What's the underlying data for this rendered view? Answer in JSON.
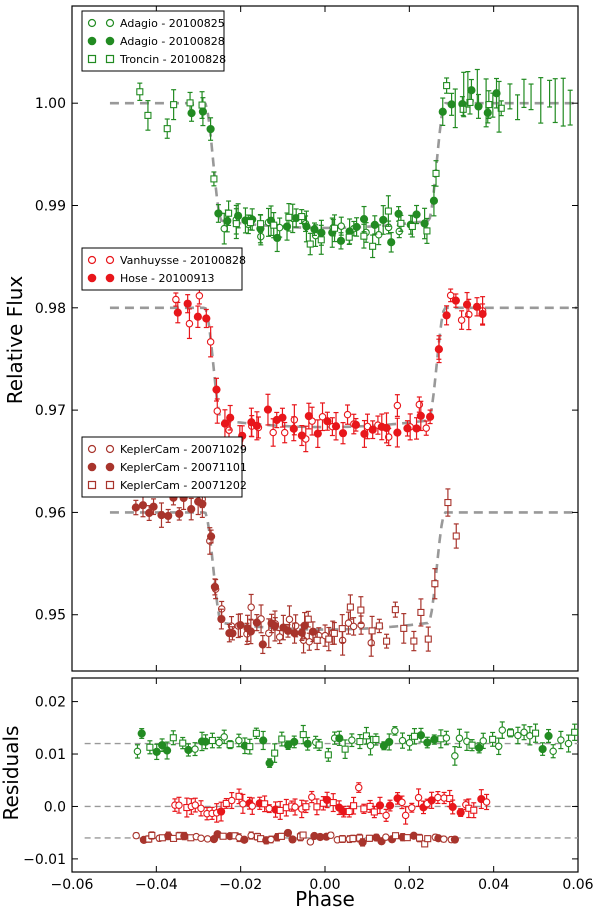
{
  "chart_data": [
    {
      "type": "scatter",
      "panel": "top",
      "ylabel": "Relative Flux",
      "xlim": [
        -0.06,
        0.06
      ],
      "ylim": [
        0.9445,
        1.0095
      ],
      "yticks": [
        0.95,
        0.96,
        0.97,
        0.98,
        0.99,
        1.0
      ],
      "yticklabels": [
        "0.95",
        "0.96",
        "0.97",
        "0.98",
        "0.99",
        "1.00"
      ],
      "legend_groups": [
        {
          "entries": [
            {
              "label": "Adagio - 20100825",
              "color": "#228B22",
              "marker": "open-circle"
            },
            {
              "label": "Adagio - 20100828",
              "color": "#228B22",
              "marker": "filled-circle"
            },
            {
              "label": "Troncin - 20100828",
              "color": "#228B22",
              "marker": "open-square"
            }
          ]
        },
        {
          "entries": [
            {
              "label": "Vanhuysse - 20100828",
              "color": "#e8161b",
              "marker": "open-circle"
            },
            {
              "label": "Hose - 20100913",
              "color": "#e8161b",
              "marker": "filled-circle"
            }
          ]
        },
        {
          "entries": [
            {
              "label": "KeplerCam - 20071029",
              "color": "#a8342c",
              "marker": "open-circle"
            },
            {
              "label": "KeplerCam - 20071101",
              "color": "#a8342c",
              "marker": "filled-circle"
            },
            {
              "label": "KeplerCam - 20071202",
              "color": "#a8342c",
              "marker": "open-square"
            }
          ]
        }
      ],
      "models": [
        {
          "name": "green model",
          "baseline": 1.0,
          "depth": 0.0115,
          "t1": 0.0285,
          "t2": 0.0245
        },
        {
          "name": "red model",
          "baseline": 0.98,
          "depth": 0.011,
          "t1": 0.0285,
          "t2": 0.0245
        },
        {
          "name": "brown model",
          "baseline": 0.96,
          "depth": 0.0108,
          "t1": 0.0285,
          "t2": 0.0245
        }
      ],
      "series": [
        {
          "name": "Adagio - 20100825",
          "color": "#228B22",
          "marker": "open-circle",
          "x_range": [
            -0.025,
            0.02
          ],
          "offset": 0.0,
          "n": 16
        },
        {
          "name": "Adagio - 20100828",
          "color": "#228B22",
          "marker": "filled-circle",
          "x_range": [
            -0.032,
            0.042
          ],
          "offset": 0.0,
          "n": 36
        },
        {
          "name": "Troncin - 20100828",
          "color": "#228B22",
          "marker": "open-square",
          "x_range": [
            -0.045,
            0.043
          ],
          "offset": 0.0,
          "n": 30
        },
        {
          "name": "Green uncertain (tail)",
          "color": "#228B22",
          "marker": "none",
          "x_range": [
            0.03,
            0.06
          ],
          "offset": 0.0,
          "n": 16
        },
        {
          "name": "Vanhuysse - 20100828",
          "color": "#e8161b",
          "marker": "open-circle",
          "x_range": [
            -0.036,
            0.039
          ],
          "offset": -0.02,
          "n": 30
        },
        {
          "name": "Hose - 20100913",
          "color": "#e8161b",
          "marker": "filled-circle",
          "x_range": [
            -0.035,
            0.039
          ],
          "offset": -0.02,
          "n": 36
        },
        {
          "name": "KeplerCam - 20071029",
          "color": "#a8342c",
          "marker": "open-circle",
          "x_range": [
            -0.03,
            0.012
          ],
          "offset": -0.04,
          "n": 24
        },
        {
          "name": "KeplerCam - 20071101",
          "color": "#a8342c",
          "marker": "filled-circle",
          "x_range": [
            -0.045,
            -0.002
          ],
          "offset": -0.04,
          "n": 30
        },
        {
          "name": "KeplerCam - 20071202",
          "color": "#a8342c",
          "marker": "open-square",
          "x_range": [
            -0.004,
            0.032
          ],
          "offset": -0.04,
          "n": 18
        }
      ]
    },
    {
      "type": "scatter",
      "panel": "bottom",
      "ylabel": "Residuals",
      "xlabel": "Phase",
      "xlim": [
        -0.06,
        0.06
      ],
      "ylim": [
        -0.0125,
        0.0245
      ],
      "xticks": [
        -0.06,
        -0.04,
        -0.02,
        0.0,
        0.02,
        0.04,
        0.06
      ],
      "xticklabels": [
        "−0.06",
        "−0.04",
        "−0.02",
        "0.00",
        "0.02",
        "0.04",
        "0.06"
      ],
      "yticks": [
        -0.01,
        0.0,
        0.01,
        0.02
      ],
      "yticklabels": [
        "−0.01",
        "0.0",
        "0.01",
        "0.02"
      ],
      "reference_lines": [
        0.012,
        0.0,
        -0.006
      ],
      "series": [
        {
          "name": "Green residuals",
          "color": "#228B22",
          "center": 0.012,
          "x_range": [
            -0.045,
            0.06
          ],
          "n": 70
        },
        {
          "name": "Red residuals",
          "color": "#e8161b",
          "center": 0.0,
          "x_range": [
            -0.036,
            0.039
          ],
          "n": 60
        },
        {
          "name": "Brown residuals",
          "color": "#a8342c",
          "center": -0.006,
          "x_range": [
            -0.045,
            0.032
          ],
          "n": 60
        }
      ]
    }
  ]
}
